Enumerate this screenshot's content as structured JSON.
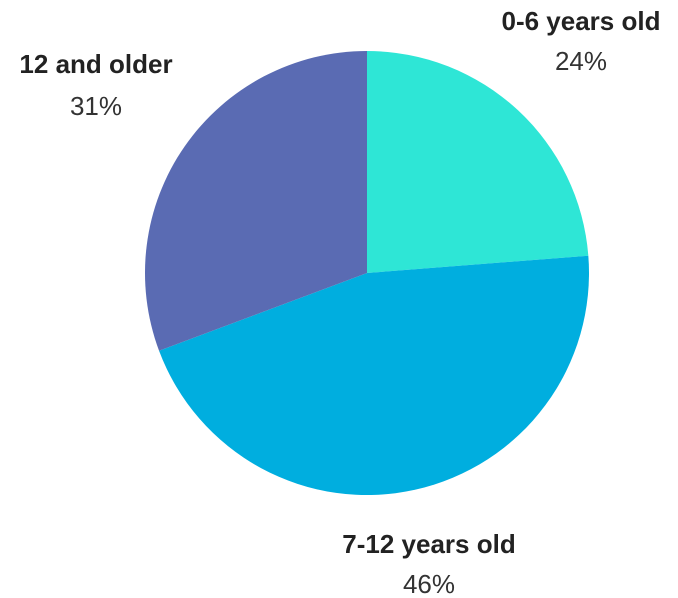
{
  "chart_data": {
    "type": "pie",
    "title": "",
    "start_angle_deg": 0,
    "direction": "clockwise",
    "slices": [
      {
        "label": "0-6 years old",
        "value": 24,
        "display": "24%",
        "color": "#2EE6D6"
      },
      {
        "label": "7-12 years old",
        "value": 46,
        "display": "46%",
        "color": "#00AEDF"
      },
      {
        "label": "12 and older",
        "value": 31,
        "display": "31%",
        "color": "#5A6BB3"
      }
    ]
  }
}
